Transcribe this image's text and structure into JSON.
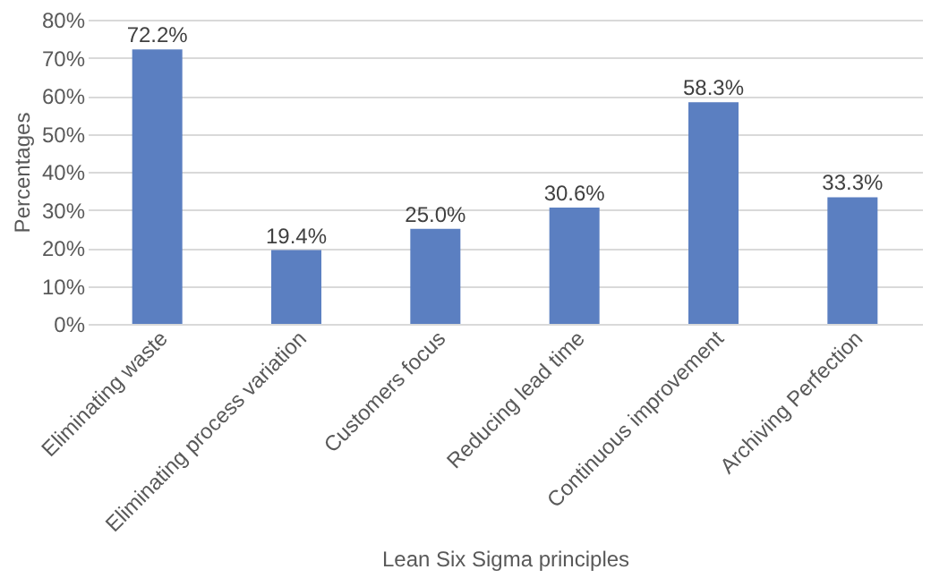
{
  "chart_data": {
    "type": "bar",
    "xlabel": "Lean Six Sigma principles",
    "ylabel": "Percentages",
    "categories": [
      "Eliminating waste",
      "Eliminating process variation",
      "Customers focus",
      "Reducing lead time",
      "Continuous improvement",
      "Archiving Perfection"
    ],
    "values": [
      72.2,
      19.4,
      25.0,
      30.6,
      58.3,
      33.3
    ],
    "value_labels": [
      "72.2%",
      "19.4%",
      "25.0%",
      "30.6%",
      "58.3%",
      "33.3%"
    ],
    "color": "#5b7fc1",
    "ylim": [
      0,
      80
    ],
    "yticks": [
      {
        "value": 0,
        "label": "0%"
      },
      {
        "value": 10,
        "label": "10%"
      },
      {
        "value": 20,
        "label": "20%"
      },
      {
        "value": 30,
        "label": "30%"
      },
      {
        "value": 40,
        "label": "40%"
      },
      {
        "value": 50,
        "label": "50%"
      },
      {
        "value": 60,
        "label": "60%"
      },
      {
        "value": 70,
        "label": "70%"
      },
      {
        "value": 80,
        "label": "80%"
      }
    ],
    "grid": "y"
  }
}
